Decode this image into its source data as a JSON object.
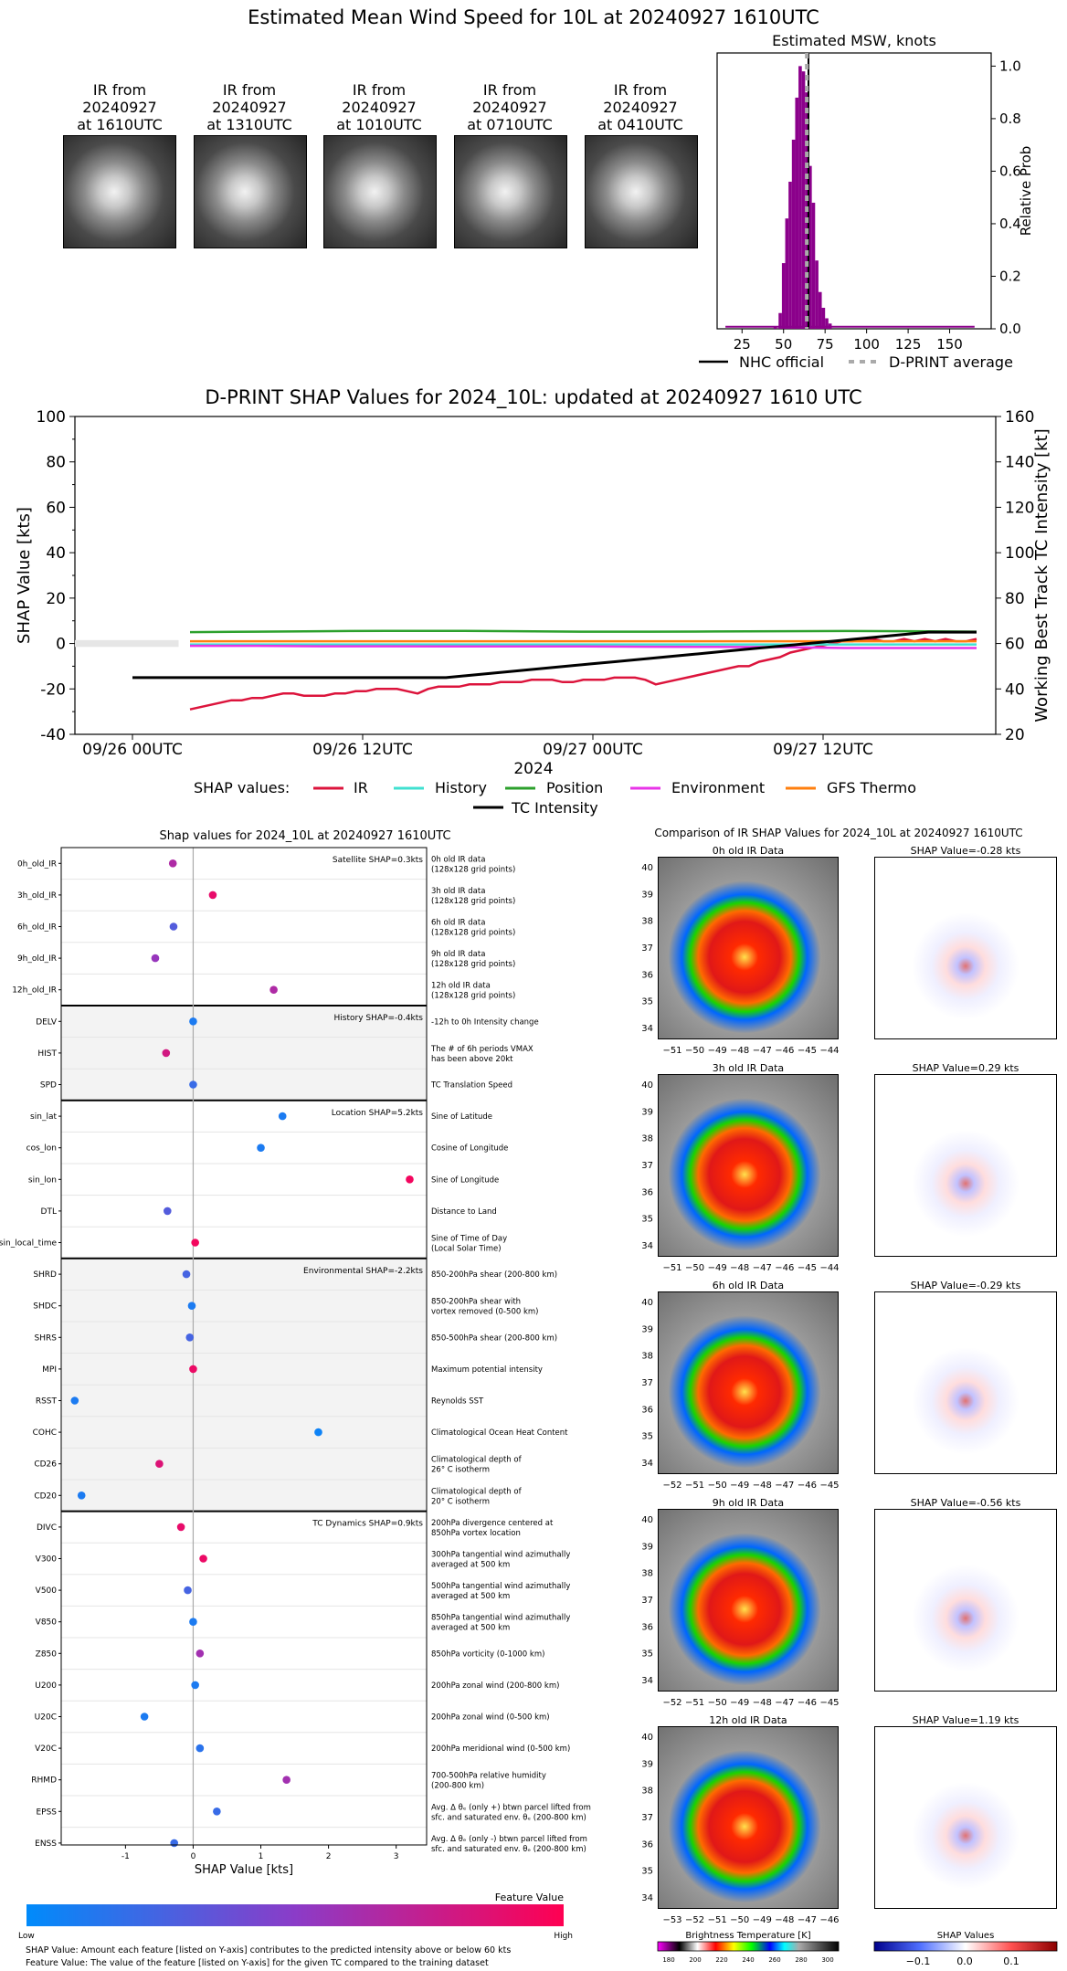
{
  "page": {
    "title": "Estimated Mean Wind Speed for 10L at 20240927 1610UTC"
  },
  "ir_thumbs": [
    {
      "line1": "IR from",
      "line2": "20240927",
      "line3": "at 1610UTC"
    },
    {
      "line1": "IR from",
      "line2": "20240927",
      "line3": "at 1310UTC"
    },
    {
      "line1": "IR from",
      "line2": "20240927",
      "line3": "at 1010UTC"
    },
    {
      "line1": "IR from",
      "line2": "20240927",
      "line3": "at 0710UTC"
    },
    {
      "line1": "IR from",
      "line2": "20240927",
      "line3": "at 0410UTC"
    }
  ],
  "colors": {
    "hist": "#8b008b",
    "ir": "#dc143c",
    "history": "#40e0d0",
    "position": "#2ca02c",
    "environment": "#e834e8",
    "gfs": "#ff7f0e",
    "intensity": "#000000"
  },
  "chart_data": [
    {
      "type": "bar",
      "title": "Estimated MSW, knots",
      "ylabel": "Relative Prob",
      "xlim": [
        10,
        175
      ],
      "ylim": [
        0,
        1.05
      ],
      "xticks": [
        "25",
        "50",
        "75",
        "100",
        "125",
        "150"
      ],
      "yticks": [
        "0.0",
        "0.2",
        "0.4",
        "0.6",
        "0.8",
        "1.0"
      ],
      "bins": [
        {
          "x": 45,
          "v": 0.01
        },
        {
          "x": 48,
          "v": 0.06
        },
        {
          "x": 50,
          "v": 0.25
        },
        {
          "x": 52,
          "v": 0.42
        },
        {
          "x": 54,
          "v": 0.56
        },
        {
          "x": 56,
          "v": 0.72
        },
        {
          "x": 58,
          "v": 0.88
        },
        {
          "x": 60,
          "v": 1.0
        },
        {
          "x": 62,
          "v": 0.98
        },
        {
          "x": 64,
          "v": 0.9
        },
        {
          "x": 66,
          "v": 0.62
        },
        {
          "x": 68,
          "v": 0.48
        },
        {
          "x": 70,
          "v": 0.26
        },
        {
          "x": 72,
          "v": 0.14
        },
        {
          "x": 74,
          "v": 0.08
        },
        {
          "x": 76,
          "v": 0.04
        },
        {
          "x": 78,
          "v": 0.02
        }
      ],
      "baseline": [
        15,
        165
      ],
      "nhc_official": 65,
      "dprint_average": 64,
      "legend": [
        "NHC official",
        "D-PRINT average"
      ]
    },
    {
      "type": "line",
      "title": "D-PRINT SHAP Values for 2024_10L: updated at 20240927 1610 UTC",
      "xlabel": "2024",
      "ylabel": "SHAP Value [kts]",
      "y2label": "Working Best Track TC Intensity [kt]",
      "ylim": [
        -40,
        100
      ],
      "y2lim": [
        20,
        160
      ],
      "xlim_hours": [
        -3,
        45
      ],
      "xticks": [
        {
          "h": 0,
          "label": "09/26 00UTC"
        },
        {
          "h": 12,
          "label": "09/26 12UTC"
        },
        {
          "h": 24,
          "label": "09/27 00UTC"
        },
        {
          "h": 36,
          "label": "09/27 12UTC"
        }
      ],
      "yticks": [
        "-40",
        "-20",
        "0",
        "20",
        "40",
        "60",
        "80",
        "100"
      ],
      "y2ticks": [
        "20",
        "40",
        "60",
        "80",
        "100",
        "120",
        "140",
        "160"
      ],
      "legend_prefix": "SHAP values:",
      "legend": [
        "IR",
        "History",
        "Position",
        "Environment",
        "GFS Thermo",
        "TC Intensity"
      ],
      "series": [
        {
          "name": "IR",
          "values": [
            -29,
            -28,
            -27,
            -26,
            -25,
            -25,
            -24,
            -24,
            -23,
            -22,
            -22,
            -23,
            -23,
            -23,
            -22,
            -22,
            -21,
            -21,
            -20,
            -20,
            -20,
            -21,
            -22,
            -20,
            -19,
            -19,
            -19,
            -18,
            -18,
            -18,
            -17,
            -17,
            -17,
            -16,
            -16,
            -16,
            -17,
            -17,
            -16,
            -16,
            -16,
            -15,
            -15,
            -15,
            -16,
            -18,
            -17,
            -16,
            -15,
            -14,
            -13,
            -12,
            -11,
            -10,
            -10,
            -8,
            -7,
            -6,
            -4,
            -3,
            -2,
            -1,
            0,
            1,
            1,
            2,
            2,
            1,
            1,
            2,
            1,
            2,
            1,
            2,
            1,
            1,
            2
          ]
        },
        {
          "name": "History",
          "values": [
            -0.4,
            -0.4,
            -0.4,
            -0.4,
            -0.4
          ]
        },
        {
          "name": "Position",
          "values": [
            5,
            5.2,
            5.4,
            5.6,
            5.6,
            5.4,
            5.2,
            5.2,
            5.3,
            5.4,
            5.5,
            5.4,
            5.2
          ]
        },
        {
          "name": "Environment",
          "values": [
            -1,
            -1,
            -1.2,
            -1.2,
            -1.3,
            -1.3,
            -1.3,
            -1.4,
            -1.5,
            -1.6,
            -2,
            -2,
            -2
          ]
        },
        {
          "name": "GFS Thermo",
          "values": [
            1,
            1,
            1,
            1,
            1,
            1,
            1,
            1,
            1,
            1,
            1,
            1,
            1
          ]
        },
        {
          "name": "TC Intensity",
          "values": [
            45,
            45,
            45,
            45,
            45,
            45,
            45,
            45,
            45,
            45,
            45,
            45,
            45,
            45,
            46,
            47,
            48,
            49,
            50,
            51,
            52,
            53,
            54,
            55,
            56,
            57,
            58,
            59,
            60,
            61,
            62,
            63,
            64,
            65,
            65,
            65
          ]
        }
      ]
    },
    {
      "type": "scatter",
      "title": "Shap values for 2024_10L at 20240927 1610UTC",
      "xlabel": "SHAP Value [kts]",
      "xlim": [
        -1.95,
        3.45
      ],
      "xticks": [
        "-1",
        "0",
        "1",
        "2",
        "3"
      ],
      "groups": [
        {
          "label": "Satellite SHAP=0.3kts",
          "shade": false,
          "count": 5
        },
        {
          "label": "History SHAP=-0.4kts",
          "shade": true,
          "count": 3
        },
        {
          "label": "Location SHAP=5.2kts",
          "shade": false,
          "count": 5
        },
        {
          "label": "Environmental SHAP=-2.2kts",
          "shade": true,
          "count": 8
        },
        {
          "label": "TC Dynamics SHAP=0.9kts",
          "shade": false,
          "count": 11
        }
      ],
      "features": [
        {
          "name": "0h_old_IR",
          "x": -0.3,
          "c": 0.65,
          "d1": "0h old IR data",
          "d2": "(128x128 grid points)"
        },
        {
          "name": "3h_old_IR",
          "x": 0.29,
          "c": 0.9,
          "d1": "3h old IR data",
          "d2": "(128x128 grid points)"
        },
        {
          "name": "6h_old_IR",
          "x": -0.29,
          "c": 0.3,
          "d1": "6h old IR data",
          "d2": "(128x128 grid points)"
        },
        {
          "name": "9h_old_IR",
          "x": -0.56,
          "c": 0.55,
          "d1": "9h old IR data",
          "d2": "(128x128 grid points)"
        },
        {
          "name": "12h_old_IR",
          "x": 1.19,
          "c": 0.65,
          "d1": "12h old IR data",
          "d2": "(128x128 grid points)"
        },
        {
          "name": "DELV",
          "x": 0.0,
          "c": 0.1,
          "d1": "-12h to 0h Intensity change",
          "d2": ""
        },
        {
          "name": "HIST",
          "x": -0.4,
          "c": 0.8,
          "d1": "The # of 6h periods VMAX",
          "d2": "has been above 20kt"
        },
        {
          "name": "SPD",
          "x": 0.0,
          "c": 0.2,
          "d1": "TC Translation Speed",
          "d2": ""
        },
        {
          "name": "sin_lat",
          "x": 1.32,
          "c": 0.1,
          "d1": "Sine of Latitude",
          "d2": ""
        },
        {
          "name": "cos_lon",
          "x": 1.0,
          "c": 0.1,
          "d1": "Cosine of Longitude",
          "d2": ""
        },
        {
          "name": "sin_lon",
          "x": 3.2,
          "c": 0.95,
          "d1": "Sine of Longitude",
          "d2": ""
        },
        {
          "name": "DTL",
          "x": -0.38,
          "c": 0.3,
          "d1": "Distance to Land",
          "d2": ""
        },
        {
          "name": "sin_local_time",
          "x": 0.03,
          "c": 0.95,
          "d1": "Sine of Time of Day",
          "d2": "(Local Solar Time)"
        },
        {
          "name": "SHRD",
          "x": -0.1,
          "c": 0.25,
          "d1": "850-200hPa shear (200-800 km)",
          "d2": ""
        },
        {
          "name": "SHDC",
          "x": -0.02,
          "c": 0.1,
          "d1": "850-200hPa shear with",
          "d2": "vortex removed (0-500 km)"
        },
        {
          "name": "SHRS",
          "x": -0.05,
          "c": 0.25,
          "d1": "850-500hPa shear (200-800 km)",
          "d2": ""
        },
        {
          "name": "MPI",
          "x": 0.0,
          "c": 0.92,
          "d1": "Maximum potential intensity",
          "d2": ""
        },
        {
          "name": "RSST",
          "x": -1.75,
          "c": 0.1,
          "d1": "Reynolds SST",
          "d2": ""
        },
        {
          "name": "COHC",
          "x": 1.85,
          "c": 0.05,
          "d1": "Climatological Ocean Heat Content",
          "d2": ""
        },
        {
          "name": "CD26",
          "x": -0.5,
          "c": 0.85,
          "d1": "Climatological depth of",
          "d2": "26° C isotherm"
        },
        {
          "name": "CD20",
          "x": -1.65,
          "c": 0.1,
          "d1": "Climatological depth of",
          "d2": "20° C isotherm"
        },
        {
          "name": "DIVC",
          "x": -0.18,
          "c": 0.9,
          "d1": "200hPa divergence centered at",
          "d2": "850hPa vortex location"
        },
        {
          "name": "V300",
          "x": 0.15,
          "c": 0.92,
          "d1": "300hPa tangential wind azimuthally",
          "d2": "averaged at 500 km"
        },
        {
          "name": "V500",
          "x": -0.08,
          "c": 0.25,
          "d1": "500hPa tangential wind azimuthally",
          "d2": "averaged at 500 km"
        },
        {
          "name": "V850",
          "x": 0.0,
          "c": 0.1,
          "d1": "850hPa tangential wind azimuthally",
          "d2": "averaged at 500 km"
        },
        {
          "name": "Z850",
          "x": 0.1,
          "c": 0.6,
          "d1": "850hPa vorticity (0-1000 km)",
          "d2": ""
        },
        {
          "name": "U200",
          "x": 0.03,
          "c": 0.1,
          "d1": "200hPa zonal wind (200-800 km)",
          "d2": ""
        },
        {
          "name": "U20C",
          "x": -0.72,
          "c": 0.1,
          "d1": "200hPa zonal wind (0-500 km)",
          "d2": ""
        },
        {
          "name": "V20C",
          "x": 0.1,
          "c": 0.15,
          "d1": "200hPa meridional wind (0-500 km)",
          "d2": ""
        },
        {
          "name": "RHMD",
          "x": 1.38,
          "c": 0.6,
          "d1": "700-500hPa relative humidity",
          "d2": "(200-800 km)"
        },
        {
          "name": "EPSS",
          "x": 0.35,
          "c": 0.2,
          "d1": "Avg. Δ θₑ (only +) btwn parcel lifted from",
          "d2": "sfc. and saturated env. θₑ (200-800 km)"
        },
        {
          "name": "ENSS",
          "x": -0.28,
          "c": 0.2,
          "d1": "Avg. Δ θₑ (only -) btwn parcel lifted from",
          "d2": "sfc. and saturated env. θₑ (200-800 km)"
        }
      ],
      "colorbar": {
        "label": "Feature Value",
        "low": "Low",
        "high": "High"
      }
    }
  ],
  "footnotes": {
    "line1": "SHAP Value: Amount each feature [listed on Y-axis] contributes to the predicted intensity above or below 60 kts",
    "line2": "Feature Value: The value of the feature [listed on Y-axis] for the given TC compared to the training dataset"
  },
  "comparison": {
    "title": "Comparison of IR SHAP Values for 2024_10L at 20240927 1610UTC",
    "yticks": [
      "34",
      "35",
      "36",
      "37",
      "38",
      "39",
      "40"
    ],
    "rows": [
      {
        "left": "0h old IR Data",
        "right": "SHAP Value=-0.28 kts",
        "xticks": [
          "−51",
          "−50",
          "−49",
          "−48",
          "−47",
          "−46",
          "−45",
          "−44"
        ]
      },
      {
        "left": "3h old IR Data",
        "right": "SHAP Value=0.29 kts",
        "xticks": [
          "−51",
          "−50",
          "−49",
          "−48",
          "−47",
          "−46",
          "−45",
          "−44"
        ]
      },
      {
        "left": "6h old IR Data",
        "right": "SHAP Value=-0.29 kts",
        "xticks": [
          "−52",
          "−51",
          "−50",
          "−49",
          "−48",
          "−47",
          "−46",
          "−45"
        ]
      },
      {
        "left": "9h old IR Data",
        "right": "SHAP Value=-0.56 kts",
        "xticks": [
          "−52",
          "−51",
          "−50",
          "−49",
          "−48",
          "−47",
          "−46",
          "−45"
        ]
      },
      {
        "left": "12h old IR Data",
        "right": "SHAP Value=1.19 kts",
        "xticks": [
          "−53",
          "−52",
          "−51",
          "−50",
          "−49",
          "−48",
          "−47",
          "−46"
        ]
      }
    ],
    "tb_cbar": {
      "label": "Brightness Temperature [K]",
      "ticks": [
        "180",
        "200",
        "220",
        "240",
        "260",
        "280",
        "300"
      ]
    },
    "shap_cbar": {
      "label": "SHAP Values",
      "ticks": [
        "−0.1",
        "0.0",
        "0.1"
      ]
    }
  }
}
